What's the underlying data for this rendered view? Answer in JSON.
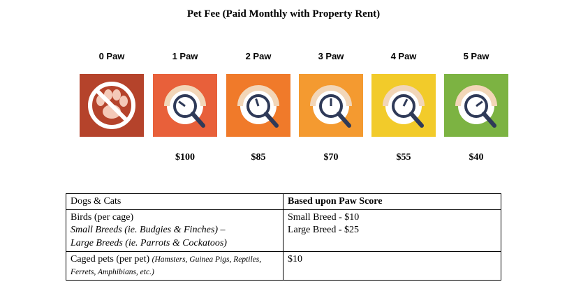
{
  "title": "Pet Fee (Paid Monthly with Property Rent)",
  "tiers": [
    {
      "label": "0 Paw",
      "price": "",
      "color": "#b5432b",
      "icon": "no-pets-icon"
    },
    {
      "label": "1 Paw",
      "price": "$100",
      "color": "#e8603a",
      "icon": "paw-score-gauge-icon",
      "needle_level": 0.2
    },
    {
      "label": "2 Paw",
      "price": "$85",
      "color": "#f07a2a",
      "icon": "paw-score-gauge-icon",
      "needle_level": 0.4
    },
    {
      "label": "3 Paw",
      "price": "$70",
      "color": "#f49a30",
      "icon": "paw-score-gauge-icon",
      "needle_level": 0.5
    },
    {
      "label": "4 Paw",
      "price": "$55",
      "color": "#f2cb2a",
      "icon": "paw-score-gauge-icon",
      "needle_level": 0.65
    },
    {
      "label": "5 Paw",
      "price": "$40",
      "color": "#7cb342",
      "icon": "paw-score-gauge-icon",
      "needle_level": 0.8
    }
  ],
  "table": {
    "header_left": "Dogs & Cats",
    "header_right": "Based upon Paw Score",
    "row1": {
      "left_line1": "Birds (per cage)",
      "left_line2": "Small Breeds (ie. Budgies & Finches) –",
      "left_line3": "Large Breeds (ie. Parrots & Cockatoos)",
      "right_line1": "Small Breed - $10",
      "right_line2": "Large Breed - $25"
    },
    "row2": {
      "left_main": "Caged pets (per pet) ",
      "left_note": "(Hamsters, Guinea Pigs, Reptiles, Ferrets, Amphibians, etc.)",
      "right": "$10"
    }
  }
}
